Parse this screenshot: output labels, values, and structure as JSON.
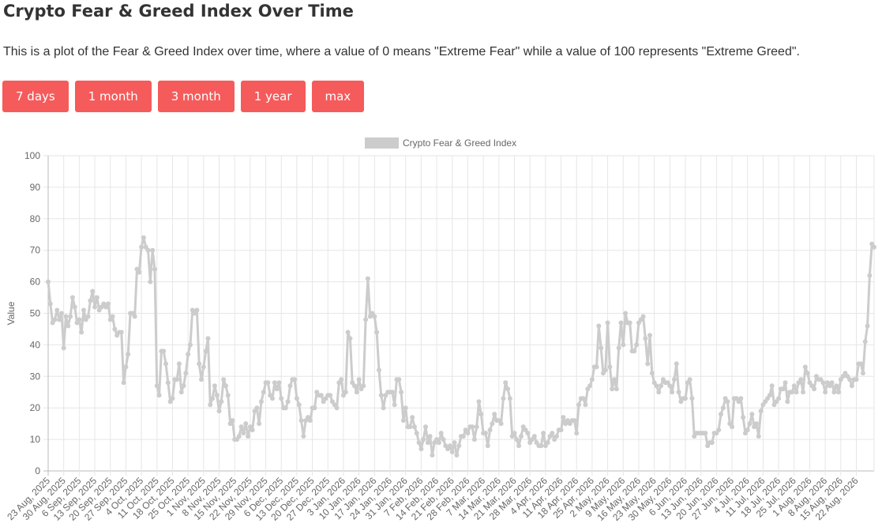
{
  "header": {
    "title": "Crypto Fear & Greed Index Over Time",
    "description": "This is a plot of the Fear & Greed Index over time, where a value of 0 means \"Extreme Fear\" while a value of 100 represents \"Extreme Greed\"."
  },
  "buttons": [
    {
      "label": "7 days"
    },
    {
      "label": "1 month"
    },
    {
      "label": "3 month"
    },
    {
      "label": "1 year"
    },
    {
      "label": "max"
    }
  ],
  "colors": {
    "button_bg": "#f55b5b",
    "line": "#cccccc",
    "grid": "#e6e6e6",
    "axis_text": "#666666"
  },
  "chart_data": {
    "type": "line",
    "title": "",
    "xlabel": "",
    "ylabel": "Value",
    "ylim": [
      0,
      100
    ],
    "yticks": [
      0,
      10,
      20,
      30,
      40,
      50,
      60,
      70,
      80,
      90,
      100
    ],
    "grid": true,
    "legend_position": "top-center",
    "x_start": "2025-08-23",
    "x_end": "2026-08-25",
    "x_tick_labels": [
      "23 Aug, 2025",
      "30 Aug, 2025",
      "6 Sep, 2025",
      "13 Sep, 2025",
      "20 Sep, 2025",
      "27 Sep, 2025",
      "4 Oct, 2025",
      "11 Oct, 2025",
      "18 Oct, 2025",
      "25 Oct, 2025",
      "1 Nov, 2025",
      "8 Nov, 2025",
      "15 Nov, 2025",
      "22 Nov, 2025",
      "29 Nov, 2025",
      "6 Dec, 2025",
      "13 Dec, 2025",
      "20 Dec, 2025",
      "27 Dec, 2025",
      "3 Jan, 2026",
      "10 Jan, 2026",
      "17 Jan, 2026",
      "24 Jan, 2026",
      "31 Jan, 2026",
      "7 Feb, 2026",
      "14 Feb, 2026",
      "21 Feb, 2026",
      "28 Feb, 2026",
      "7 Mar, 2026",
      "14 Mar, 2026",
      "21 Mar, 2026",
      "28 Mar, 2026",
      "4 Apr, 2026",
      "11 Apr, 2026",
      "18 Apr, 2026",
      "25 Apr, 2026",
      "2 May, 2026",
      "9 May, 2026",
      "16 May, 2026",
      "23 May, 2026",
      "30 May, 2026",
      "6 Jun, 2026",
      "13 Jun, 2026",
      "20 Jun, 2026",
      "27 Jun, 2026",
      "4 Jul, 2026",
      "11 Jul, 2026",
      "18 Jul, 2026",
      "25 Jul, 2026",
      "1 Aug, 2026",
      "8 Aug, 2026",
      "15 Aug, 2026",
      "22 Aug, 2026"
    ],
    "series": [
      {
        "name": "Crypto Fear & Greed Index",
        "color": "#cccccc",
        "values": [
          60,
          53,
          47,
          48,
          51,
          48,
          50,
          39,
          49,
          46,
          49,
          55,
          52,
          47,
          48,
          44,
          51,
          48,
          49,
          54,
          57,
          52,
          55,
          51,
          52,
          53,
          52,
          53,
          48,
          49,
          45,
          43,
          44,
          44,
          28,
          33,
          37,
          50,
          50,
          49,
          64,
          63,
          71,
          74,
          71,
          70,
          60,
          70,
          64,
          27,
          24,
          38,
          38,
          34,
          28,
          22,
          23,
          29,
          29,
          34,
          25,
          27,
          31,
          37,
          40,
          51,
          50,
          51,
          34,
          29,
          33,
          38,
          42,
          21,
          23,
          27,
          24,
          19,
          22,
          29,
          27,
          24,
          15,
          16,
          10,
          10,
          11,
          14,
          12,
          15,
          11,
          14,
          13,
          19,
          20,
          15,
          22,
          25,
          28,
          28,
          24,
          23,
          28,
          26,
          28,
          23,
          20,
          20,
          22,
          27,
          29,
          29,
          23,
          21,
          16,
          11,
          16,
          17,
          16,
          20,
          20,
          25,
          24,
          24,
          22,
          23,
          24,
          24,
          22,
          21,
          20,
          28,
          29,
          24,
          25,
          44,
          42,
          28,
          27,
          25,
          29,
          26,
          27,
          48,
          61,
          49,
          50,
          49,
          44,
          32,
          24,
          20,
          24,
          25,
          25,
          25,
          21,
          29,
          29,
          25,
          16,
          20,
          14,
          14,
          17,
          14,
          12,
          9,
          7,
          10,
          14,
          9,
          11,
          5,
          9,
          10,
          9,
          12,
          10,
          8,
          7,
          8,
          6,
          9,
          5,
          8,
          11,
          11,
          13,
          12,
          14,
          14,
          10,
          14,
          22,
          18,
          12,
          12,
          8,
          13,
          15,
          18,
          16,
          16,
          15,
          23,
          28,
          26,
          23,
          11,
          12,
          10,
          8,
          11,
          14,
          13,
          12,
          9,
          10,
          11,
          9,
          8,
          8,
          12,
          8,
          9,
          11,
          12,
          10,
          11,
          13,
          13,
          17,
          15,
          16,
          15,
          16,
          16,
          12,
          21,
          23,
          23,
          21,
          26,
          27,
          29,
          33,
          33,
          46,
          39,
          31,
          32,
          47,
          33,
          26,
          29,
          26,
          39,
          47,
          40,
          50,
          47,
          47,
          38,
          38,
          40,
          47,
          48,
          49,
          42,
          34,
          43,
          31,
          28,
          27,
          25,
          27,
          29,
          28,
          28,
          27,
          25,
          29,
          34,
          25,
          22,
          23,
          23,
          28,
          29,
          23,
          11,
          12,
          12,
          12,
          12,
          12,
          8,
          9,
          9,
          12,
          12,
          13,
          18,
          20,
          23,
          22,
          15,
          14,
          23,
          23,
          22,
          23,
          17,
          12,
          13,
          15,
          18,
          14,
          15,
          11,
          19,
          21,
          22,
          23,
          24,
          27,
          21,
          22,
          23,
          26,
          26,
          28,
          22,
          25,
          25,
          27,
          25,
          28,
          29,
          25,
          33,
          31,
          28,
          27,
          26,
          30,
          29,
          29,
          28,
          25,
          28,
          27,
          28,
          25,
          27,
          25,
          29,
          30,
          31,
          30,
          29,
          27,
          29,
          29,
          34,
          34,
          31,
          41,
          46,
          62,
          72,
          71
        ]
      }
    ]
  }
}
